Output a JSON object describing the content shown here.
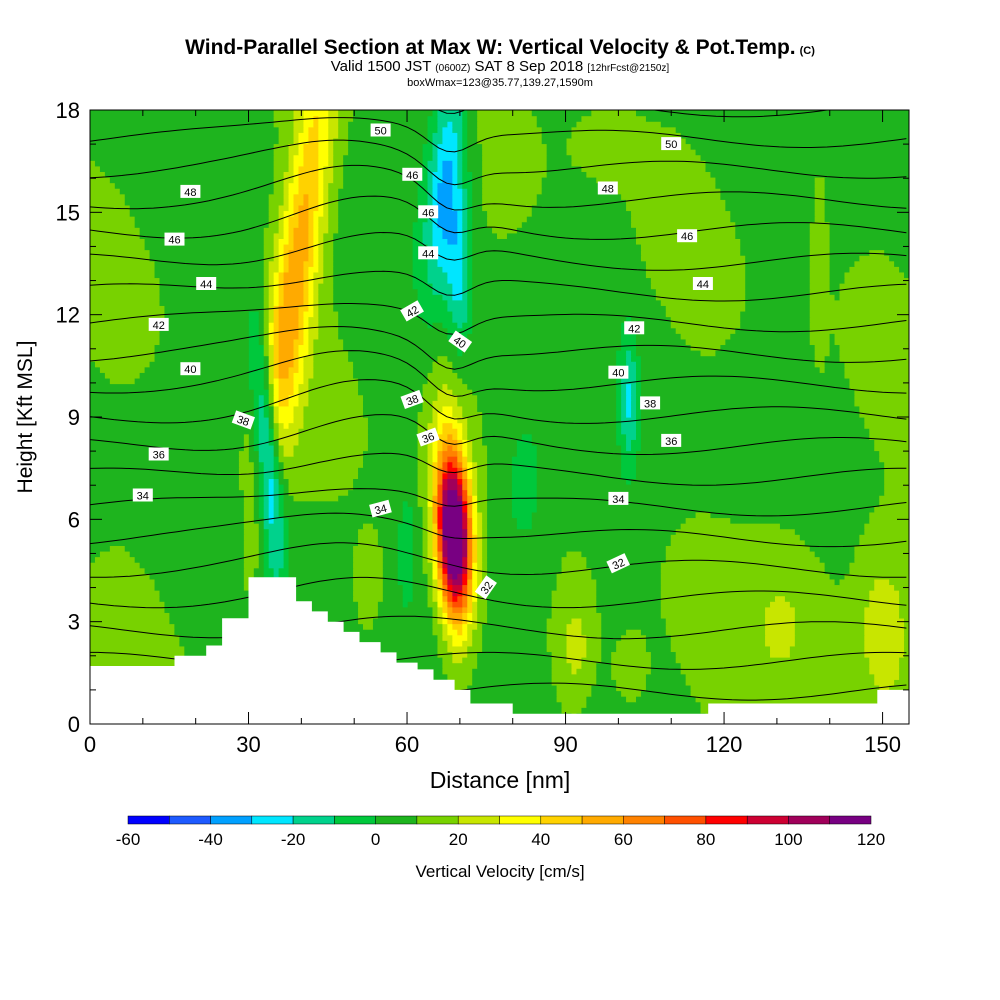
{
  "title": {
    "main": "Wind-Parallel Section at Max W: Vertical Velocity & Pot.Temp.",
    "mark": "(C)",
    "valid_prefix": "Valid 1500 JST",
    "valid_utc": "(0600Z)",
    "valid_date": "SAT 8 Sep 2018",
    "valid_fcst": "[12hrFcst@2150z]",
    "box": "boxWmax=123@35.77,139.27,1590m"
  },
  "colors": {
    "shading_levels": [
      -60,
      -50,
      -40,
      -30,
      -20,
      -10,
      0,
      10,
      20,
      30,
      40,
      50,
      60,
      70,
      80,
      90,
      100,
      110,
      120
    ],
    "shading_colors": [
      "#0000ff",
      "#1e5aff",
      "#00a0ff",
      "#00e6ff",
      "#00d28c",
      "#00c83c",
      "#1eb41e",
      "#78d200",
      "#c8e600",
      "#ffff00",
      "#ffd200",
      "#ffaa00",
      "#ff8200",
      "#ff5000",
      "#ff0000",
      "#cd0032",
      "#a0005a",
      "#780082"
    ]
  },
  "chart_data": {
    "type": "heatmap",
    "title": "Wind-Parallel Section at Max W: Vertical Velocity & Pot.Temp.",
    "xlabel": "Distance [nm]",
    "ylabel": "Height [Kft MSL]",
    "xlim": [
      0,
      155
    ],
    "ylim": [
      0,
      18
    ],
    "x_ticks": [
      0,
      30,
      60,
      90,
      120,
      150
    ],
    "y_ticks": [
      0,
      3,
      6,
      9,
      12,
      15,
      18
    ],
    "grid": false,
    "colorbar": {
      "label": "Vertical Velocity [cm/s]",
      "ticks": [
        -60,
        -40,
        -20,
        0,
        20,
        40,
        60,
        80,
        100,
        120
      ],
      "range": [
        -60,
        120
      ],
      "placement": "bottom"
    },
    "terrain": {
      "x": [
        0,
        16,
        16,
        22,
        22,
        25,
        25,
        30,
        30,
        39,
        39,
        42,
        42,
        45,
        45,
        48,
        48,
        51,
        51,
        55,
        55,
        58,
        58,
        62,
        62,
        65,
        65,
        69,
        69,
        72,
        72,
        80,
        80,
        117,
        117,
        149,
        149,
        155
      ],
      "height": [
        1.7,
        1.7,
        2.0,
        2.0,
        2.3,
        2.3,
        3.1,
        3.1,
        4.3,
        4.3,
        3.6,
        3.6,
        3.3,
        3.3,
        3.0,
        3.0,
        2.7,
        2.7,
        2.4,
        2.4,
        2.1,
        2.1,
        1.8,
        1.8,
        1.6,
        1.6,
        1.3,
        1.3,
        1.0,
        1.0,
        0.6,
        0.6,
        0.3,
        0.3,
        0.6,
        0.6,
        1.0,
        1.0
      ]
    },
    "vertical_velocity_features": [
      {
        "x": 69,
        "z": 5.5,
        "peak_cm_s": 120
      },
      {
        "x": 40,
        "z": 14.5,
        "peak_cm_s": 45
      },
      {
        "x": 35,
        "z": 7.3,
        "peak_cm_s": -45
      },
      {
        "x": 69,
        "z": 15.5,
        "peak_cm_s": -35
      },
      {
        "x": 53,
        "z": 4.2,
        "peak_cm_s": 15
      },
      {
        "x": 57,
        "z": 13.0,
        "peak_cm_s": 10
      },
      {
        "x": 92,
        "z": 2.2,
        "peak_cm_s": 25
      },
      {
        "x": 102,
        "z": 1.5,
        "peak_cm_s": 20
      },
      {
        "x": 130,
        "z": 3.5,
        "peak_cm_s": 20
      },
      {
        "x": 150,
        "z": 3.0,
        "peak_cm_s": 25
      },
      {
        "x": 97,
        "z": 17.3,
        "peak_cm_s": 10
      },
      {
        "x": 138,
        "z": 13.8,
        "peak_cm_s": 15
      },
      {
        "x": 102,
        "z": 9.5,
        "peak_cm_s": -20
      },
      {
        "x": 82,
        "z": 6.8,
        "peak_cm_s": -10
      }
    ],
    "pot_temp_contours": {
      "levels": [
        32,
        33,
        34,
        35,
        36,
        37,
        38,
        39,
        40,
        41,
        42,
        43,
        44,
        45,
        46,
        47,
        48,
        49,
        50,
        51
      ],
      "units": "C",
      "labels": [
        {
          "value": "50",
          "x": 55,
          "z": 17.4,
          "angle": 0
        },
        {
          "value": "50",
          "x": 110,
          "z": 17.0,
          "angle": 0
        },
        {
          "value": "48",
          "x": 19,
          "z": 15.6,
          "angle": 0
        },
        {
          "value": "48",
          "x": 98,
          "z": 15.7,
          "angle": 0
        },
        {
          "value": "46",
          "x": 61,
          "z": 16.1,
          "angle": 0
        },
        {
          "value": "46",
          "x": 64,
          "z": 15.0,
          "angle": 0
        },
        {
          "value": "46",
          "x": 16,
          "z": 14.2,
          "angle": 0
        },
        {
          "value": "46",
          "x": 113,
          "z": 14.3,
          "angle": 0
        },
        {
          "value": "44",
          "x": 64,
          "z": 13.8,
          "angle": 0
        },
        {
          "value": "44",
          "x": 22,
          "z": 12.9,
          "angle": 0
        },
        {
          "value": "44",
          "x": 116,
          "z": 12.9,
          "angle": 0
        },
        {
          "value": "42",
          "x": 61,
          "z": 12.1,
          "angle": -30
        },
        {
          "value": "42",
          "x": 13,
          "z": 11.7,
          "angle": 0
        },
        {
          "value": "42",
          "x": 103,
          "z": 11.6,
          "angle": 0
        },
        {
          "value": "40",
          "x": 70,
          "z": 11.2,
          "angle": 35
        },
        {
          "value": "40",
          "x": 19,
          "z": 10.4,
          "angle": 0
        },
        {
          "value": "40",
          "x": 100,
          "z": 10.3,
          "angle": 0
        },
        {
          "value": "38",
          "x": 29,
          "z": 8.9,
          "angle": 20
        },
        {
          "value": "38",
          "x": 61,
          "z": 9.5,
          "angle": -20
        },
        {
          "value": "38",
          "x": 106,
          "z": 9.4,
          "angle": 0
        },
        {
          "value": "36",
          "x": 64,
          "z": 8.4,
          "angle": -20
        },
        {
          "value": "36",
          "x": 13,
          "z": 7.9,
          "angle": 0
        },
        {
          "value": "36",
          "x": 110,
          "z": 8.3,
          "angle": 0
        },
        {
          "value": "34",
          "x": 10,
          "z": 6.7,
          "angle": 0
        },
        {
          "value": "34",
          "x": 55,
          "z": 6.3,
          "angle": -15
        },
        {
          "value": "34",
          "x": 100,
          "z": 6.6,
          "angle": 0
        },
        {
          "value": "32",
          "x": 75,
          "z": 4.0,
          "angle": -55
        },
        {
          "value": "32",
          "x": 100,
          "z": 4.7,
          "angle": -25
        }
      ]
    }
  }
}
